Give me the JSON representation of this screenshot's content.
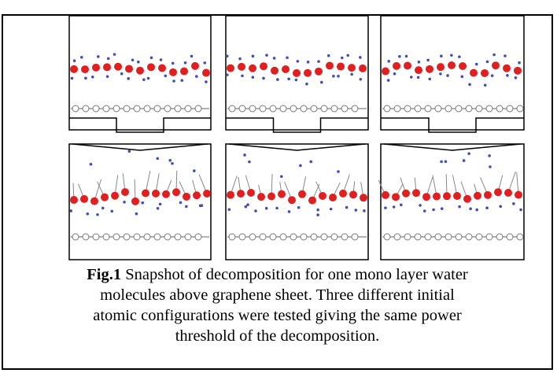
{
  "caption": {
    "label": "Fig.1",
    "lines": [
      "Snapshot of decomposition for one mono layer water",
      "molecules above graphene sheet. Three different initial",
      "atomic configurations were tested giving the same power",
      "threshold of the decomposition."
    ]
  }
}
